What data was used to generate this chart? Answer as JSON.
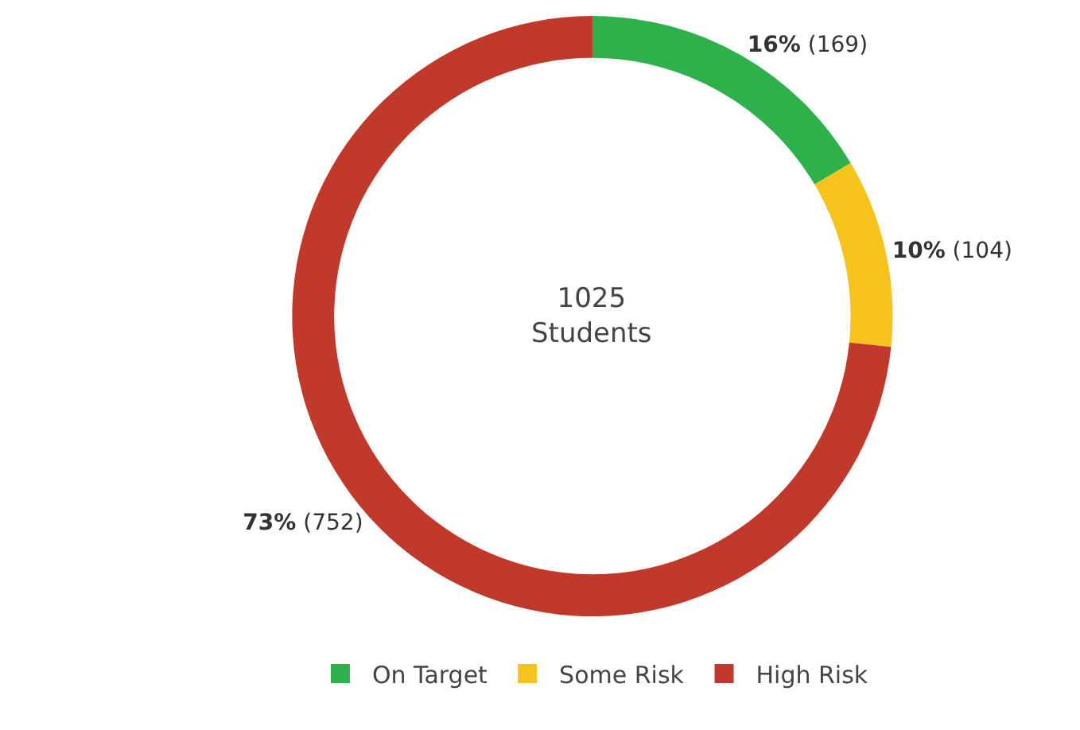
{
  "chart_data": {
    "type": "donut",
    "categories": [
      "On Target",
      "Some Risk",
      "High Risk"
    ],
    "values": [
      169,
      104,
      752
    ],
    "colors": [
      "#2eb04b",
      "#f6c31c",
      "#c0392b"
    ],
    "value_labels": [
      "16% (169)",
      "10% (104)",
      "73% (752)"
    ],
    "annotations": [
      "1025\nStudents"
    ],
    "legend": "bottom"
  }
}
